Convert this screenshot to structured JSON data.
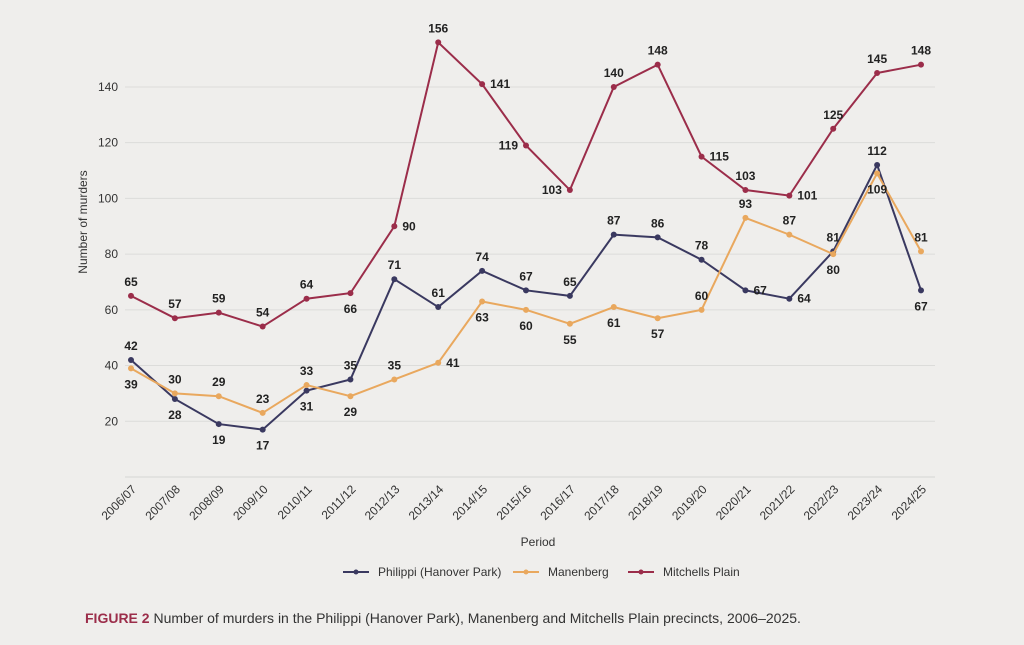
{
  "chart_data": {
    "type": "line",
    "xlabel": "Period",
    "ylabel": "Number of murders",
    "ylim": [
      0,
      160
    ],
    "yticks": [
      20,
      40,
      60,
      80,
      100,
      120,
      140
    ],
    "grid": true,
    "legend_placement": "bottom",
    "categories": [
      "2006/07",
      "2007/08",
      "2008/09",
      "2009/10",
      "2010/11",
      "2011/12",
      "2012/13",
      "2013/14",
      "2014/15",
      "2015/16",
      "2016/17",
      "2017/18",
      "2018/19",
      "2019/20",
      "2020/21",
      "2021/22",
      "2022/23",
      "2023/24",
      "2024/25"
    ],
    "series": [
      {
        "name": "Philippi (Hanover Park)",
        "color": "#3a3960",
        "values": [
          42,
          28,
          19,
          17,
          31,
          35,
          71,
          61,
          74,
          67,
          65,
          87,
          86,
          78,
          67,
          64,
          81,
          112,
          67
        ]
      },
      {
        "name": "Manenberg",
        "color": "#e9a85e",
        "values": [
          39,
          30,
          29,
          23,
          33,
          29,
          35,
          41,
          63,
          60,
          55,
          61,
          57,
          60,
          93,
          87,
          80,
          109,
          81
        ]
      },
      {
        "name": "Mitchells Plain",
        "color": "#9b2d4a",
        "values": [
          65,
          57,
          59,
          54,
          64,
          66,
          90,
          156,
          141,
          119,
          103,
          140,
          148,
          115,
          103,
          101,
          125,
          145,
          148
        ]
      }
    ]
  },
  "caption": {
    "label": "FIGURE 2",
    "text": " Number of murders in the Philippi (Hanover Park), Manenberg and Mitchells Plain precincts, 2006–2025."
  }
}
